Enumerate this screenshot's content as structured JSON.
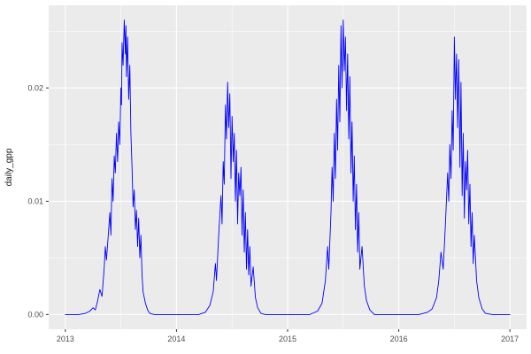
{
  "chart_data": {
    "type": "line",
    "title": "",
    "xlabel": "",
    "ylabel": "daily_gpp",
    "legend": "none",
    "grid": "on",
    "panel_bg": "#EBEBEB",
    "grid_color": "#FFFFFF",
    "tick_label_color": "#4D4D4D",
    "axis_title_color": "#1A1A1A",
    "tick_mark_color": "#333333",
    "line_color": "#0000FF",
    "xlim": [
      2012.85,
      2017.15
    ],
    "ylim": [
      -0.0013,
      0.0273
    ],
    "x_ticks": [
      2013,
      2014,
      2015,
      2016,
      2017
    ],
    "x_tick_labels": [
      "2013",
      "2014",
      "2015",
      "2016",
      "2017"
    ],
    "y_ticks": [
      0.0,
      0.01,
      0.02
    ],
    "y_tick_labels": [
      "0.00",
      "0.01",
      "0.02"
    ],
    "minor_x": [
      2013.5,
      2014.5,
      2015.5,
      2016.5
    ],
    "minor_y": [
      0.005,
      0.015,
      0.025
    ],
    "points": [
      [
        2013.0,
        0
      ],
      [
        2013.06,
        0
      ],
      [
        2013.12,
        0
      ],
      [
        2013.18,
        0.0001
      ],
      [
        2013.22,
        0.0003
      ],
      [
        2013.25,
        0.0006
      ],
      [
        2013.27,
        0.0004
      ],
      [
        2013.29,
        0.0012
      ],
      [
        2013.31,
        0.0022
      ],
      [
        2013.33,
        0.0016
      ],
      [
        2013.35,
        0.0042
      ],
      [
        2013.36,
        0.006
      ],
      [
        2013.37,
        0.0048
      ],
      [
        2013.39,
        0.0075
      ],
      [
        2013.4,
        0.009
      ],
      [
        2013.41,
        0.007
      ],
      [
        2013.42,
        0.012
      ],
      [
        2013.43,
        0.01
      ],
      [
        2013.44,
        0.014
      ],
      [
        2013.45,
        0.0125
      ],
      [
        2013.46,
        0.016
      ],
      [
        2013.47,
        0.0135
      ],
      [
        2013.48,
        0.017
      ],
      [
        2013.49,
        0.015
      ],
      [
        2013.5,
        0.02
      ],
      [
        2013.505,
        0.0185
      ],
      [
        2013.51,
        0.024
      ],
      [
        2013.52,
        0.022
      ],
      [
        2013.53,
        0.026
      ],
      [
        2013.54,
        0.023
      ],
      [
        2013.545,
        0.0255
      ],
      [
        2013.55,
        0.021
      ],
      [
        2013.56,
        0.0245
      ],
      [
        2013.57,
        0.019
      ],
      [
        2013.58,
        0.022
      ],
      [
        2013.59,
        0.016
      ],
      [
        2013.6,
        0.013
      ],
      [
        2013.61,
        0.0095
      ],
      [
        2013.62,
        0.011
      ],
      [
        2013.63,
        0.0075
      ],
      [
        2013.64,
        0.0092
      ],
      [
        2013.65,
        0.006
      ],
      [
        2013.66,
        0.0085
      ],
      [
        2013.67,
        0.005
      ],
      [
        2013.68,
        0.007
      ],
      [
        2013.69,
        0.0035
      ],
      [
        2013.7,
        0.002
      ],
      [
        2013.72,
        0.001
      ],
      [
        2013.74,
        0.0004
      ],
      [
        2013.76,
        0.0001
      ],
      [
        2013.8,
        0
      ],
      [
        2013.88,
        0
      ],
      [
        2013.96,
        0
      ],
      [
        2014.04,
        0
      ],
      [
        2014.12,
        0
      ],
      [
        2014.2,
        0
      ],
      [
        2014.26,
        0.0002
      ],
      [
        2014.3,
        0.0008
      ],
      [
        2014.33,
        0.002
      ],
      [
        2014.35,
        0.0045
      ],
      [
        2014.36,
        0.003
      ],
      [
        2014.38,
        0.007
      ],
      [
        2014.4,
        0.0105
      ],
      [
        2014.41,
        0.008
      ],
      [
        2014.42,
        0.0135
      ],
      [
        2014.43,
        0.0115
      ],
      [
        2014.44,
        0.0185
      ],
      [
        2014.45,
        0.0155
      ],
      [
        2014.46,
        0.0205
      ],
      [
        2014.47,
        0.0165
      ],
      [
        2014.48,
        0.0195
      ],
      [
        2014.49,
        0.012
      ],
      [
        2014.5,
        0.0175
      ],
      [
        2014.51,
        0.0135
      ],
      [
        2014.52,
        0.016
      ],
      [
        2014.53,
        0.01
      ],
      [
        2014.54,
        0.0145
      ],
      [
        2014.55,
        0.008
      ],
      [
        2014.56,
        0.0125
      ],
      [
        2014.57,
        0.0105
      ],
      [
        2014.58,
        0.013
      ],
      [
        2014.59,
        0.007
      ],
      [
        2014.6,
        0.011
      ],
      [
        2014.61,
        0.0055
      ],
      [
        2014.62,
        0.009
      ],
      [
        2014.63,
        0.004
      ],
      [
        2014.64,
        0.0075
      ],
      [
        2014.65,
        0.0035
      ],
      [
        2014.66,
        0.006
      ],
      [
        2014.67,
        0.0025
      ],
      [
        2014.69,
        0.0042
      ],
      [
        2014.71,
        0.0015
      ],
      [
        2014.73,
        0.0006
      ],
      [
        2014.76,
        0.0001
      ],
      [
        2014.8,
        0
      ],
      [
        2014.88,
        0
      ],
      [
        2014.96,
        0
      ],
      [
        2015.04,
        0
      ],
      [
        2015.12,
        0
      ],
      [
        2015.2,
        0
      ],
      [
        2015.27,
        0.0003
      ],
      [
        2015.31,
        0.001
      ],
      [
        2015.34,
        0.003
      ],
      [
        2015.36,
        0.006
      ],
      [
        2015.37,
        0.004
      ],
      [
        2015.39,
        0.009
      ],
      [
        2015.4,
        0.013
      ],
      [
        2015.41,
        0.01
      ],
      [
        2015.42,
        0.016
      ],
      [
        2015.43,
        0.012
      ],
      [
        2015.44,
        0.019
      ],
      [
        2015.45,
        0.0145
      ],
      [
        2015.46,
        0.022
      ],
      [
        2015.47,
        0.017
      ],
      [
        2015.48,
        0.0255
      ],
      [
        2015.49,
        0.02
      ],
      [
        2015.5,
        0.026
      ],
      [
        2015.51,
        0.0215
      ],
      [
        2015.52,
        0.0245
      ],
      [
        2015.53,
        0.018
      ],
      [
        2015.54,
        0.023
      ],
      [
        2015.55,
        0.0155
      ],
      [
        2015.56,
        0.021
      ],
      [
        2015.57,
        0.0125
      ],
      [
        2015.58,
        0.017
      ],
      [
        2015.59,
        0.01
      ],
      [
        2015.6,
        0.014
      ],
      [
        2015.61,
        0.0075
      ],
      [
        2015.62,
        0.0115
      ],
      [
        2015.63,
        0.0055
      ],
      [
        2015.64,
        0.009
      ],
      [
        2015.65,
        0.004
      ],
      [
        2015.67,
        0.006
      ],
      [
        2015.69,
        0.0025
      ],
      [
        2015.71,
        0.0012
      ],
      [
        2015.74,
        0.0004
      ],
      [
        2015.78,
        0
      ],
      [
        2015.86,
        0
      ],
      [
        2015.94,
        0
      ],
      [
        2016.02,
        0
      ],
      [
        2016.1,
        0
      ],
      [
        2016.18,
        0
      ],
      [
        2016.26,
        0.0002
      ],
      [
        2016.3,
        0.0005
      ],
      [
        2016.34,
        0.0015
      ],
      [
        2016.36,
        0.003
      ],
      [
        2016.38,
        0.0055
      ],
      [
        2016.4,
        0.004
      ],
      [
        2016.42,
        0.008
      ],
      [
        2016.44,
        0.0125
      ],
      [
        2016.45,
        0.01
      ],
      [
        2016.46,
        0.015
      ],
      [
        2016.47,
        0.012
      ],
      [
        2016.48,
        0.018
      ],
      [
        2016.49,
        0.0145
      ],
      [
        2016.5,
        0.0245
      ],
      [
        2016.51,
        0.019
      ],
      [
        2016.52,
        0.023
      ],
      [
        2016.53,
        0.0165
      ],
      [
        2016.54,
        0.0225
      ],
      [
        2016.55,
        0.013
      ],
      [
        2016.56,
        0.0205
      ],
      [
        2016.57,
        0.0105
      ],
      [
        2016.58,
        0.016
      ],
      [
        2016.59,
        0.0085
      ],
      [
        2016.6,
        0.0135
      ],
      [
        2016.61,
        0.011
      ],
      [
        2016.62,
        0.0145
      ],
      [
        2016.63,
        0.008
      ],
      [
        2016.64,
        0.0115
      ],
      [
        2016.65,
        0.006
      ],
      [
        2016.66,
        0.009
      ],
      [
        2016.67,
        0.0045
      ],
      [
        2016.68,
        0.007
      ],
      [
        2016.7,
        0.003
      ],
      [
        2016.72,
        0.0015
      ],
      [
        2016.75,
        0.0005
      ],
      [
        2016.78,
        0.0001
      ],
      [
        2016.84,
        0
      ],
      [
        2016.92,
        0
      ],
      [
        2017.0,
        0
      ]
    ]
  }
}
